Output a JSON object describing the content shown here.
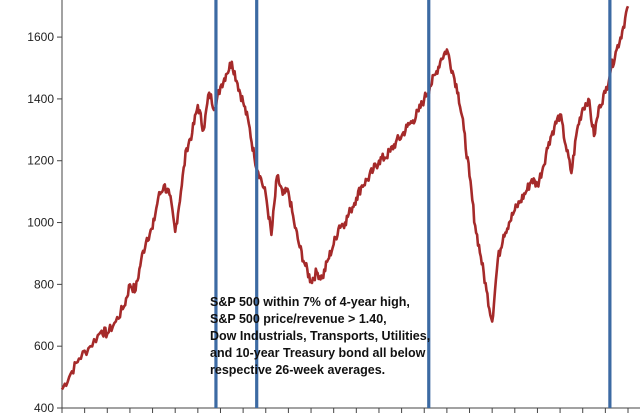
{
  "chart_data": {
    "type": "line",
    "title": "",
    "xlabel": "",
    "ylabel": "",
    "ylim": [
      400,
      1720
    ],
    "yticks": [
      400,
      600,
      800,
      1000,
      1200,
      1400,
      1600
    ],
    "grid": false,
    "legend": "none",
    "x_index_range": [
      0,
      100
    ],
    "series": [
      {
        "color": "#a52a2a",
        "x": [
          0,
          1.5,
          3,
          5,
          7,
          8,
          9.5,
          11,
          12,
          13,
          14,
          15,
          16,
          17,
          18,
          19,
          20,
          21,
          22,
          23,
          24,
          25,
          26,
          27,
          28,
          29,
          30,
          31,
          32,
          33,
          34,
          35,
          36,
          37,
          38,
          39,
          40,
          41,
          42,
          43,
          44,
          45,
          46,
          47,
          48,
          49,
          50,
          51,
          52,
          53,
          54,
          55,
          56,
          57,
          58,
          59,
          60,
          61,
          62,
          63,
          64,
          65,
          66,
          67,
          68,
          69,
          70,
          71,
          72,
          73,
          74,
          75,
          76,
          77,
          78,
          79,
          80,
          81,
          82,
          83,
          84,
          85,
          86,
          87,
          88,
          89,
          90,
          91,
          92,
          93,
          94,
          95,
          96,
          97,
          98,
          99,
          100
        ],
        "values": [
          460,
          510,
          560,
          600,
          650,
          640,
          680,
          730,
          800,
          780,
          880,
          950,
          980,
          1080,
          1120,
          1090,
          970,
          1100,
          1240,
          1290,
          1380,
          1300,
          1420,
          1370,
          1440,
          1480,
          1520,
          1450,
          1390,
          1320,
          1210,
          1150,
          1090,
          960,
          1150,
          1090,
          1100,
          1000,
          920,
          860,
          810,
          840,
          820,
          880,
          930,
          990,
          1000,
          1040,
          1080,
          1120,
          1140,
          1170,
          1200,
          1210,
          1230,
          1260,
          1280,
          1310,
          1330,
          1360,
          1400,
          1440,
          1480,
          1530,
          1560,
          1490,
          1420,
          1300,
          1150,
          990,
          890,
          780,
          680,
          880,
          960,
          1000,
          1040,
          1070,
          1100,
          1140,
          1120,
          1180,
          1260,
          1310,
          1350,
          1250,
          1160,
          1300,
          1370,
          1400,
          1280,
          1380,
          1420,
          1500,
          1560,
          1620,
          1700
        ],
        "label_indices": []
      }
    ],
    "vertical_markers_index": [
      27.2,
      34.4,
      64.8,
      96.8
    ],
    "annotation": {
      "lines": [
        "S&P 500 within 7% of 4-year high,",
        "S&P 500 price/revenue > 1.40,",
        "Dow Industrials, Transports, Utilities,",
        "and 10-year Treasury bond all below",
        "respective 26-week averages."
      ]
    },
    "colors": {
      "line": "#a52a2a",
      "marker": "#3c6aa3",
      "axis": "#444444"
    }
  }
}
